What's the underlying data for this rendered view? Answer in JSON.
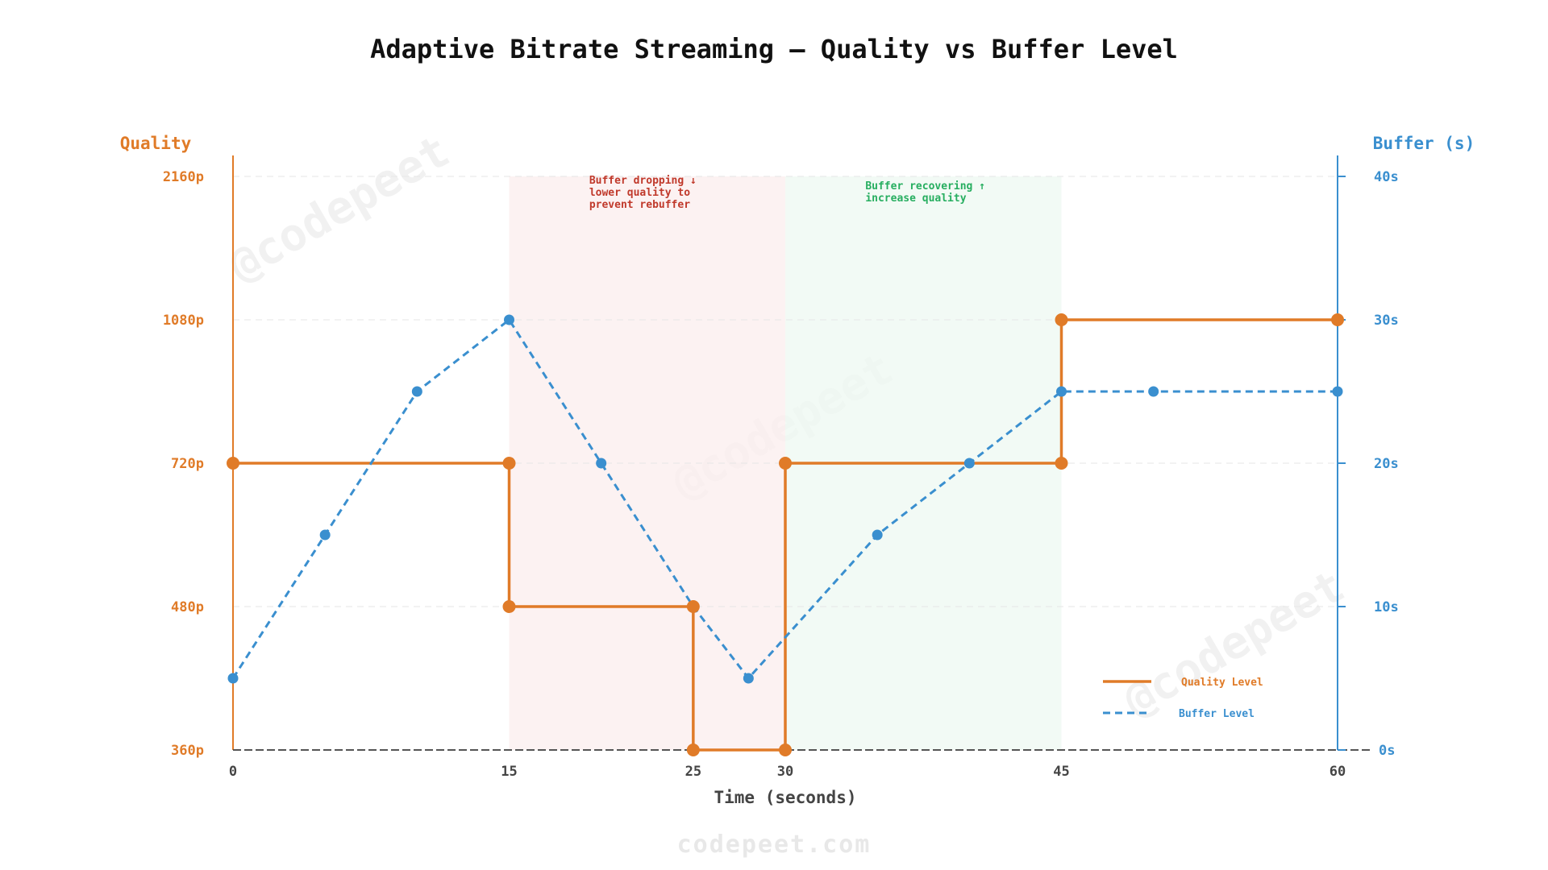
{
  "title": "Adaptive Bitrate Streaming — Quality vs Buffer Level",
  "footer": "codepeet.com",
  "watermark": "@codepeet",
  "colors": {
    "quality": "#e07b28",
    "buffer": "#3a8fcf",
    "drop_region": "#fbeeee",
    "recover_region": "#eef8f1",
    "drop_text": "#c0392b",
    "recover_text": "#27ae60",
    "grid": "#e6e6e6",
    "baseline": "#555555"
  },
  "chart_data": {
    "type": "line",
    "title": "Adaptive Bitrate Streaming — Quality vs Buffer Level",
    "xlabel": "Time (seconds)",
    "ylabel_left": "Quality",
    "ylabel_right": "Buffer (s)",
    "xlim": [
      0,
      60
    ],
    "x_ticks": [
      0,
      15,
      25,
      30,
      45,
      60
    ],
    "quality_levels": [
      "360p",
      "480p",
      "720p",
      "1080p",
      "2160p"
    ],
    "buffer_ylim": [
      0,
      40
    ],
    "buffer_ticks": [
      "0s",
      "10s",
      "20s",
      "30s",
      "40s"
    ],
    "grid": true,
    "legend_position": "bottom-right",
    "series": [
      {
        "name": "Quality Level",
        "style": "step",
        "x": [
          0,
          15,
          15,
          25,
          25,
          30,
          30,
          45,
          45,
          60
        ],
        "values": [
          "720p",
          "720p",
          "480p",
          "480p",
          "360p",
          "360p",
          "720p",
          "720p",
          "1080p",
          "1080p"
        ]
      },
      {
        "name": "Buffer Level",
        "style": "dashed",
        "x": [
          0,
          5,
          10,
          15,
          20,
          25,
          28,
          35,
          40,
          45,
          50,
          60
        ],
        "values": [
          5,
          15,
          25,
          30,
          20,
          10,
          5,
          15,
          20,
          25,
          25,
          25
        ]
      }
    ],
    "regions": [
      {
        "x": [
          15,
          30
        ],
        "label": [
          "Buffer dropping ↓",
          "lower quality to",
          "prevent rebuffer"
        ]
      },
      {
        "x": [
          30,
          45
        ],
        "label": [
          "Buffer recovering ↑",
          "increase quality"
        ]
      }
    ]
  }
}
